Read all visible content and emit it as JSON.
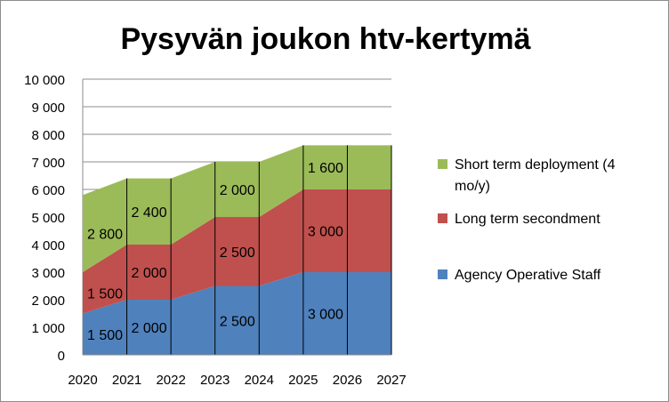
{
  "chart_data": {
    "type": "area",
    "stacked": true,
    "title": "Pysyvän joukon htv-kertymä",
    "xlabel": "",
    "ylabel": "",
    "ylim": [
      0,
      10000
    ],
    "y_ticks": [
      "0",
      "1 000",
      "2 000",
      "3 000",
      "4 000",
      "5 000",
      "6 000",
      "7 000",
      "8 000",
      "9 000",
      "10 000"
    ],
    "y_tick_values": [
      0,
      1000,
      2000,
      3000,
      4000,
      5000,
      6000,
      7000,
      8000,
      9000,
      10000
    ],
    "x": [
      "2020",
      "2021",
      "2022",
      "2023",
      "2024",
      "2025",
      "2026",
      "2027"
    ],
    "grid": true,
    "legend_position": "right",
    "series": [
      {
        "name": "Agency Operative Staff",
        "color": "#4f81bd",
        "values": [
          1500,
          2000,
          2000,
          2500,
          2500,
          3000,
          3000,
          3000
        ]
      },
      {
        "name": "Long term secondment",
        "color": "#c0504d",
        "values": [
          1500,
          2000,
          2000,
          2500,
          2500,
          3000,
          3000,
          3000
        ]
      },
      {
        "name": "Short term deployment (4 mo/y)",
        "color": "#9bbb59",
        "values": [
          2800,
          2400,
          2400,
          2000,
          2000,
          1600,
          1600,
          1600
        ]
      }
    ],
    "data_labels": [
      {
        "series": 0,
        "index": 0,
        "text": "1 500"
      },
      {
        "series": 0,
        "index": 1,
        "text": "2 000"
      },
      {
        "series": 0,
        "index": 3,
        "text": "2 500"
      },
      {
        "series": 0,
        "index": 5,
        "text": "3 000"
      },
      {
        "series": 1,
        "index": 0,
        "text": "1 500"
      },
      {
        "series": 1,
        "index": 1,
        "text": "2 000"
      },
      {
        "series": 1,
        "index": 3,
        "text": "2 500"
      },
      {
        "series": 1,
        "index": 5,
        "text": "3 000"
      },
      {
        "series": 2,
        "index": 0,
        "text": "2 800"
      },
      {
        "series": 2,
        "index": 1,
        "text": "2 400"
      },
      {
        "series": 2,
        "index": 3,
        "text": "2 000"
      },
      {
        "series": 2,
        "index": 5,
        "text": "1 600"
      }
    ],
    "legend": [
      {
        "series": 2,
        "lines": [
          "Short term deployment (4",
          "mo/y)"
        ]
      },
      {
        "series": 1,
        "lines": [
          "Long term secondment"
        ]
      },
      {
        "series": 0,
        "lines": [
          "Agency Operative Staff"
        ]
      }
    ]
  }
}
